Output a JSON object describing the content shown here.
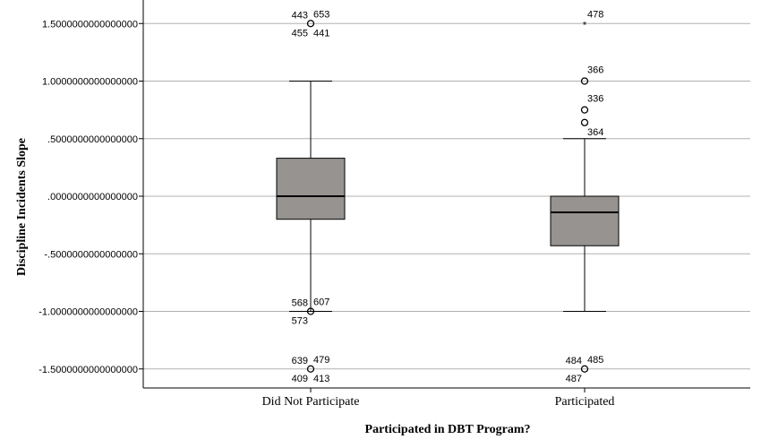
{
  "chart_data": {
    "type": "boxplot",
    "xlabel": "Participated in DBT Program?",
    "ylabel": "Discipline Incidents Slope",
    "ylim": [
      -1.65,
      1.65
    ],
    "grid": true,
    "yticks": [
      {
        "value": 1.5,
        "label": "1.5000000000000000"
      },
      {
        "value": 1.0,
        "label": "1.0000000000000000"
      },
      {
        "value": 0.5,
        "label": ".5000000000000000"
      },
      {
        "value": 0.0,
        "label": ".0000000000000000"
      },
      {
        "value": -0.5,
        "label": "-.5000000000000000"
      },
      {
        "value": -1.0,
        "label": "-1.0000000000000000"
      },
      {
        "value": -1.5,
        "label": "-1.5000000000000000"
      }
    ],
    "categories": [
      "Did Not Participate",
      "Participated"
    ],
    "box_color": "#969391",
    "boxes": [
      {
        "category": "Did Not Participate",
        "whisker_low": -1.0,
        "q1": -0.2,
        "median": 0.0,
        "q3": 0.33,
        "whisker_high": 1.0,
        "outliers": [
          {
            "value": 1.5,
            "marker": "circle",
            "labels": [
              {
                "text": "443",
                "pos": "tl"
              },
              {
                "text": "653",
                "pos": "tr"
              },
              {
                "text": "455",
                "pos": "bl"
              },
              {
                "text": "441",
                "pos": "br"
              }
            ]
          },
          {
            "value": -1.0,
            "marker": "circle",
            "labels": [
              {
                "text": "568",
                "pos": "tl"
              },
              {
                "text": "607",
                "pos": "tr"
              },
              {
                "text": "573",
                "pos": "bl"
              }
            ]
          },
          {
            "value": -1.5,
            "marker": "circle",
            "labels": [
              {
                "text": "639",
                "pos": "tl"
              },
              {
                "text": "479",
                "pos": "tr"
              },
              {
                "text": "409",
                "pos": "bl"
              },
              {
                "text": "413",
                "pos": "br"
              }
            ]
          }
        ]
      },
      {
        "category": "Participated",
        "whisker_low": -1.0,
        "q1": -0.43,
        "median": -0.14,
        "q3": 0.0,
        "whisker_high": 0.5,
        "outliers": [
          {
            "value": 1.5,
            "marker": "star",
            "labels": [
              {
                "text": "478",
                "pos": "tr"
              }
            ]
          },
          {
            "value": 1.0,
            "marker": "circle",
            "labels": [
              {
                "text": "366",
                "pos": "tr"
              }
            ]
          },
          {
            "value": 0.75,
            "marker": "circle",
            "labels": [
              {
                "text": "336",
                "pos": "tr"
              }
            ]
          },
          {
            "value": 0.64,
            "marker": "circle",
            "labels": [
              {
                "text": "364",
                "pos": "br"
              }
            ]
          },
          {
            "value": -1.5,
            "marker": "circle",
            "labels": [
              {
                "text": "484",
                "pos": "tl"
              },
              {
                "text": "485",
                "pos": "tr"
              },
              {
                "text": "487",
                "pos": "bl"
              }
            ]
          }
        ]
      }
    ]
  }
}
